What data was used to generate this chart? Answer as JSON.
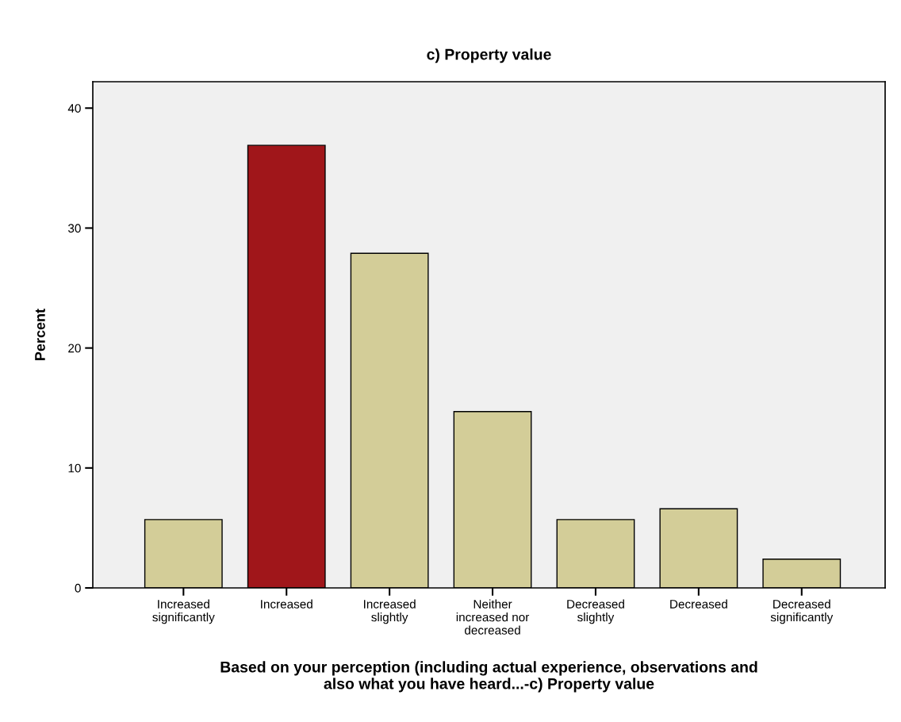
{
  "chart_data": {
    "type": "bar",
    "title": "c) Property value",
    "xlabel": "Based on your perception (including actual experience, observations and\nalso what you have heard...-c) Property value",
    "ylabel": "Percent",
    "categories": [
      "Increased\nsignificantly",
      "Increased",
      "Increased\nslightly",
      "Neither\nincreased nor\ndecreased",
      "Decreased\nslightly",
      "Decreased",
      "Decreased\nsignificantly"
    ],
    "values": [
      5.7,
      36.9,
      27.9,
      14.7,
      5.7,
      6.6,
      2.4
    ],
    "colors": [
      "#d3cd98",
      "#a0161a",
      "#d3cd98",
      "#d3cd98",
      "#d3cd98",
      "#d3cd98",
      "#d3cd98"
    ],
    "ylim": [
      0,
      42.2
    ],
    "yticks": [
      0,
      10,
      20,
      30,
      40
    ],
    "grid": false,
    "legend": false
  }
}
